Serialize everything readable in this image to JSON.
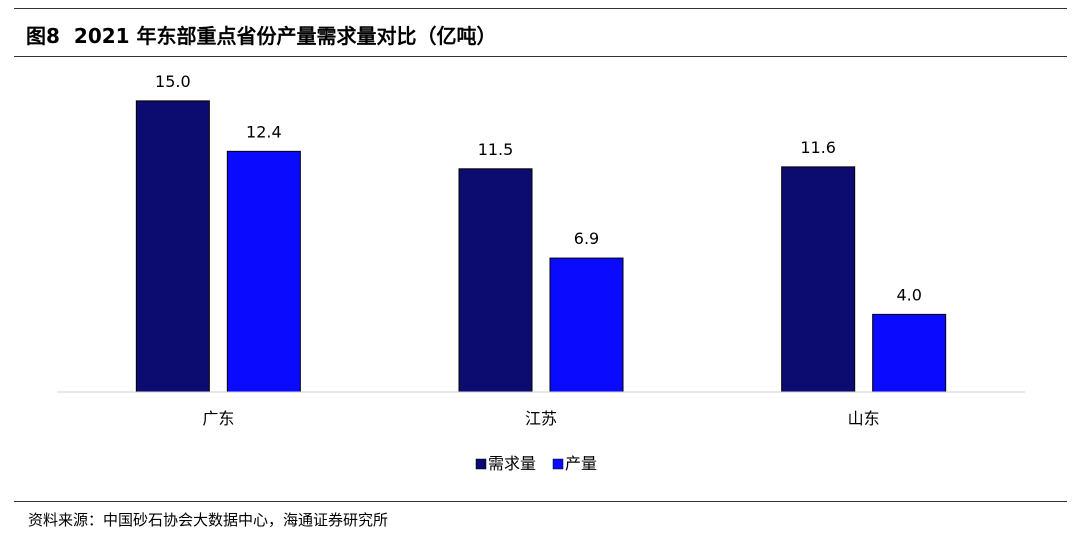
{
  "header": {
    "figure_label": "图8",
    "title": "2021 年东部重点省份产量需求量对比（亿吨）"
  },
  "footer": {
    "source": "资料来源：中国砂石协会大数据中心，海通证券研究所"
  },
  "chart_data": {
    "type": "bar",
    "title": "2021 年东部重点省份产量需求量对比（亿吨）",
    "categories": [
      "广东",
      "江苏",
      "山东"
    ],
    "series": [
      {
        "name": "需求量",
        "values": [
          15.0,
          11.5,
          11.6
        ],
        "value_labels": [
          "15.0",
          "11.5",
          "11.6"
        ],
        "color": "#0b0b70"
      },
      {
        "name": "产量",
        "values": [
          12.4,
          6.9,
          4.0
        ],
        "value_labels": [
          "12.4",
          "6.9",
          "4.0"
        ],
        "color": "#0a0aff"
      }
    ],
    "ylim": [
      0,
      15.2
    ],
    "grid": false,
    "legend_position": "bottom-center"
  }
}
